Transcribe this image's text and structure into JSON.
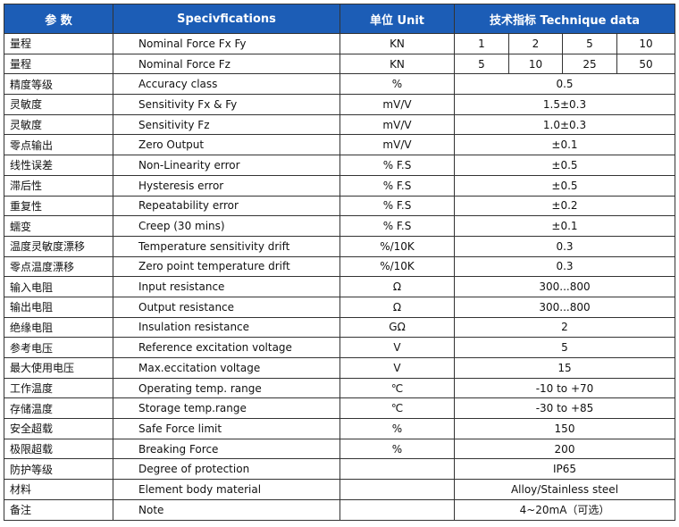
{
  "table": {
    "header": [
      "参 数",
      "Specivfications",
      "单位 Unit",
      "技术指标 Technique data"
    ],
    "rows": [
      {
        "cn": "量程",
        "en": "Nominal Force Fx Fy",
        "unit": "KN",
        "values": [
          "1",
          "2",
          "5",
          "10"
        ]
      },
      {
        "cn": "量程",
        "en": "Nominal Force Fz",
        "unit": "KN",
        "values": [
          "5",
          "10",
          "25",
          "50"
        ]
      },
      {
        "cn": "精度等级",
        "en": "Accuracy class",
        "unit": "%",
        "values": [
          "0.5"
        ]
      },
      {
        "cn": "灵敏度",
        "en": "Sensitivity Fx & Fy",
        "unit": "mV/V",
        "values": [
          "1.5±0.3"
        ]
      },
      {
        "cn": "灵敏度",
        "en": "Sensitivity Fz",
        "unit": "mV/V",
        "values": [
          "1.0±0.3"
        ]
      },
      {
        "cn": "零点输出",
        "en": "Zero Output",
        "unit": "mV/V",
        "values": [
          "±0.1"
        ]
      },
      {
        "cn": "线性误差",
        "en": "Non-Linearity error",
        "unit": "% F.S",
        "values": [
          "±0.5"
        ]
      },
      {
        "cn": "滞后性",
        "en": "Hysteresis error",
        "unit": "% F.S",
        "values": [
          "±0.5"
        ]
      },
      {
        "cn": "重复性",
        "en": "Repeatability error",
        "unit": "% F.S",
        "values": [
          "±0.2"
        ]
      },
      {
        "cn": "蠕变",
        "en": "Creep (30 mins)",
        "unit": "% F.S",
        "values": [
          "±0.1"
        ]
      },
      {
        "cn": "温度灵敏度漂移",
        "en": "Temperature sensitivity drift",
        "unit": "%/10K",
        "values": [
          "0.3"
        ]
      },
      {
        "cn": "零点温度漂移",
        "en": "Zero point temperature drift",
        "unit": "%/10K",
        "values": [
          "0.3"
        ]
      },
      {
        "cn": "输入电阻",
        "en": "Input resistance",
        "unit": "Ω",
        "values": [
          "300...800"
        ]
      },
      {
        "cn": "输出电阻",
        "en": "Output resistance",
        "unit": "Ω",
        "values": [
          "300...800"
        ]
      },
      {
        "cn": "绝缘电阻",
        "en": "Insulation resistance",
        "unit": "GΩ",
        "values": [
          "2"
        ]
      },
      {
        "cn": "参考电压",
        "en": "Reference excitation voltage",
        "unit": "V",
        "values": [
          "5"
        ]
      },
      {
        "cn": "最大使用电压",
        "en": "Max.eccitation voltage",
        "unit": "V",
        "values": [
          "15"
        ]
      },
      {
        "cn": "工作温度",
        "en": "Operating temp. range",
        "unit": "℃",
        "values": [
          "-10 to +70"
        ]
      },
      {
        "cn": "存储温度",
        "en": "Storage temp.range",
        "unit": "℃",
        "values": [
          "-30 to +85"
        ]
      },
      {
        "cn": "安全超载",
        "en": "Safe Force limit",
        "unit": "%",
        "values": [
          "150"
        ]
      },
      {
        "cn": "极限超载",
        "en": "Breaking Force",
        "unit": "%",
        "values": [
          "200"
        ]
      },
      {
        "cn": "防护等级",
        "en": "Degree of protection",
        "values": [
          "IP65"
        ]
      },
      {
        "cn": "材料",
        "en": "Element body material",
        "values": [
          "Alloy/Stainless steel"
        ]
      },
      {
        "cn": "备注",
        "en": "Note",
        "values": [
          "4~20mA（可选）"
        ]
      }
    ]
  }
}
